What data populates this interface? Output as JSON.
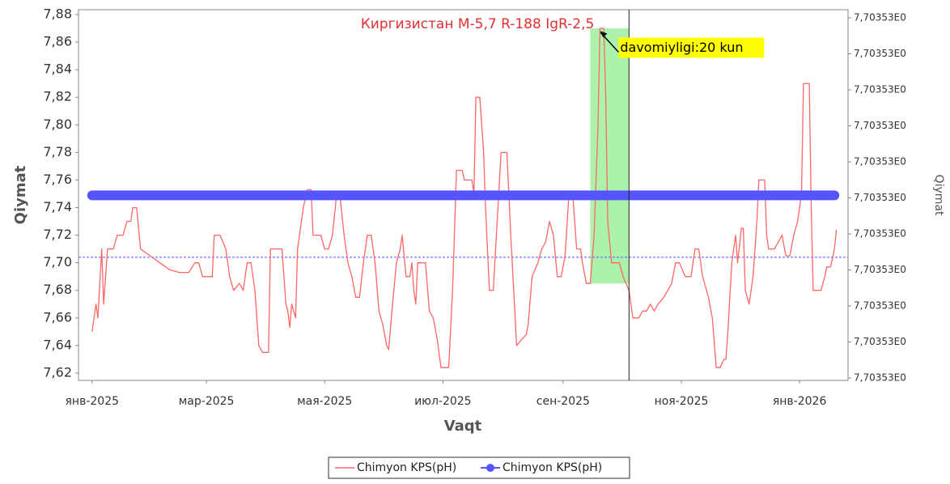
{
  "chart_data": {
    "type": "line",
    "title": "Киргизистан  M-5,7 R-188  IgR-2,5",
    "xlabel": "Vaqt",
    "ylabel": "Qiymat",
    "y2label": "Qiymat",
    "xlim": [
      -7,
      390
    ],
    "xticks": [
      {
        "value": 0,
        "label": "янв-2025"
      },
      {
        "value": 59,
        "label": "мар-2025"
      },
      {
        "value": 120,
        "label": "мая-2025"
      },
      {
        "value": 181,
        "label": "июл-2025"
      },
      {
        "value": 243,
        "label": "сен-2025"
      },
      {
        "value": 304,
        "label": "ноя-2025"
      },
      {
        "value": 365,
        "label": "янв-2026"
      }
    ],
    "ylim": [
      7.6147,
      7.8835
    ],
    "yticks": [
      {
        "value": 7.62,
        "label": "7,62"
      },
      {
        "value": 7.64,
        "label": "7,64"
      },
      {
        "value": 7.66,
        "label": "7,66"
      },
      {
        "value": 7.68,
        "label": "7,68"
      },
      {
        "value": 7.7,
        "label": "7,70"
      },
      {
        "value": 7.72,
        "label": "7,72"
      },
      {
        "value": 7.74,
        "label": "7,74"
      },
      {
        "value": 7.76,
        "label": "7,76"
      },
      {
        "value": 7.78,
        "label": "7,78"
      },
      {
        "value": 7.8,
        "label": "7,80"
      },
      {
        "value": 7.82,
        "label": "7,82"
      },
      {
        "value": 7.84,
        "label": "7,84"
      },
      {
        "value": 7.86,
        "label": "7,86"
      },
      {
        "value": 7.88,
        "label": "7,88"
      }
    ],
    "y2lim": [
      7.7035299933,
      7.7035310225
    ],
    "y2ticks": [
      {
        "value": 7.70353,
        "label": "7,70353E0"
      },
      {
        "value": 7.7035301,
        "label": "7,70353E0"
      },
      {
        "value": 7.7035302,
        "label": "7,70353E0"
      },
      {
        "value": 7.7035303,
        "label": "7,70353E0"
      },
      {
        "value": 7.7035304,
        "label": "7,70353E0"
      },
      {
        "value": 7.7035305,
        "label": "7,70353E0"
      },
      {
        "value": 7.7035306,
        "label": "7,70353E0"
      },
      {
        "value": 7.7035307,
        "label": "7,70353E0"
      },
      {
        "value": 7.7035308,
        "label": "7,70353E0"
      },
      {
        "value": 7.7035309,
        "label": "7,70353E0"
      },
      {
        "value": 7.703531,
        "label": "7,70353E0"
      }
    ],
    "reference_line": 7.704,
    "highlight": {
      "x": [
        257,
        277
      ],
      "y": [
        7.685,
        7.87
      ],
      "color": "#90ee90"
    },
    "marker_line": 277,
    "annotation": {
      "text": "davomiyligi:20 kun",
      "x": 262,
      "y": 7.868
    },
    "legend": "bottom",
    "series": [
      {
        "name": "Chimyon KPS(pH)",
        "color": "#ff6666",
        "axis": "y",
        "x": [
          0,
          2,
          3,
          5,
          6,
          8,
          11,
          13,
          16,
          18,
          20,
          21,
          23,
          25,
          30,
          35,
          40,
          45,
          50,
          53,
          55,
          57,
          62,
          63,
          66,
          69,
          71,
          73,
          76,
          78,
          80,
          82,
          84,
          86,
          88,
          91,
          92,
          98,
          100,
          101,
          102,
          103,
          105,
          106,
          109,
          111,
          113,
          114,
          118,
          120,
          122,
          124,
          126,
          128,
          130,
          132,
          134,
          136,
          138,
          140,
          142,
          144,
          146,
          148,
          150,
          152,
          153,
          155,
          157,
          159,
          160,
          162,
          164,
          165,
          166,
          167,
          168,
          172,
          174,
          176,
          178,
          180,
          184,
          186,
          188,
          191,
          192,
          196,
          197,
          198,
          200,
          202,
          203,
          205,
          207,
          209,
          211,
          214,
          216,
          219,
          222,
          224,
          225,
          227,
          230,
          232,
          234,
          236,
          238,
          240,
          242,
          244,
          246,
          248,
          250,
          252,
          253,
          255,
          257,
          259,
          261,
          262,
          264,
          265,
          266,
          268,
          272,
          274,
          277,
          279,
          282,
          284,
          286,
          288,
          290,
          292,
          295,
          299,
          301,
          303,
          306,
          309,
          311,
          313,
          315,
          318,
          320,
          322,
          324,
          326,
          327,
          328,
          330,
          332,
          333,
          335,
          336,
          337,
          339,
          341,
          343,
          344,
          347,
          348,
          349,
          352,
          354,
          356,
          357,
          358,
          360,
          362,
          364,
          366,
          367,
          370,
          371,
          372,
          376,
          378,
          379,
          381,
          383,
          384
        ],
        "values": [
          7.65,
          7.67,
          7.66,
          7.71,
          7.67,
          7.71,
          7.71,
          7.72,
          7.72,
          7.73,
          7.73,
          7.74,
          7.74,
          7.71,
          7.705,
          7.7,
          7.695,
          7.693,
          7.693,
          7.7,
          7.7,
          7.69,
          7.69,
          7.72,
          7.72,
          7.71,
          7.69,
          7.68,
          7.685,
          7.68,
          7.7,
          7.7,
          7.68,
          7.64,
          7.635,
          7.635,
          7.71,
          7.71,
          7.67,
          7.665,
          7.653,
          7.67,
          7.66,
          7.71,
          7.74,
          7.753,
          7.753,
          7.72,
          7.72,
          7.71,
          7.71,
          7.72,
          7.747,
          7.747,
          7.72,
          7.7,
          7.69,
          7.675,
          7.675,
          7.7,
          7.72,
          7.72,
          7.7,
          7.665,
          7.655,
          7.64,
          7.637,
          7.67,
          7.7,
          7.71,
          7.72,
          7.69,
          7.69,
          7.7,
          7.68,
          7.67,
          7.7,
          7.7,
          7.665,
          7.66,
          7.645,
          7.624,
          7.624,
          7.68,
          7.767,
          7.767,
          7.76,
          7.76,
          7.75,
          7.82,
          7.82,
          7.78,
          7.74,
          7.68,
          7.68,
          7.73,
          7.78,
          7.78,
          7.72,
          7.64,
          7.645,
          7.648,
          7.655,
          7.69,
          7.7,
          7.71,
          7.715,
          7.73,
          7.72,
          7.69,
          7.69,
          7.705,
          7.75,
          7.75,
          7.71,
          7.71,
          7.7,
          7.685,
          7.685,
          7.72,
          7.8,
          7.87,
          7.87,
          7.82,
          7.73,
          7.7,
          7.7,
          7.69,
          7.68,
          7.66,
          7.66,
          7.665,
          7.665,
          7.67,
          7.665,
          7.67,
          7.675,
          7.685,
          7.7,
          7.7,
          7.69,
          7.69,
          7.71,
          7.71,
          7.69,
          7.675,
          7.66,
          7.624,
          7.624,
          7.63,
          7.63,
          7.65,
          7.7,
          7.72,
          7.7,
          7.725,
          7.725,
          7.68,
          7.67,
          7.69,
          7.73,
          7.76,
          7.76,
          7.72,
          7.71,
          7.71,
          7.715,
          7.72,
          7.712,
          7.705,
          7.705,
          7.72,
          7.73,
          7.75,
          7.83,
          7.83,
          7.74,
          7.68,
          7.68,
          7.69,
          7.697,
          7.697,
          7.71,
          7.724
        ]
      },
      {
        "name": "Chimyon KPS(pH)",
        "color": "#5555ff",
        "axis": "y2",
        "x": [
          0,
          383
        ],
        "values": [
          7.703530507,
          7.703530507
        ]
      }
    ]
  }
}
